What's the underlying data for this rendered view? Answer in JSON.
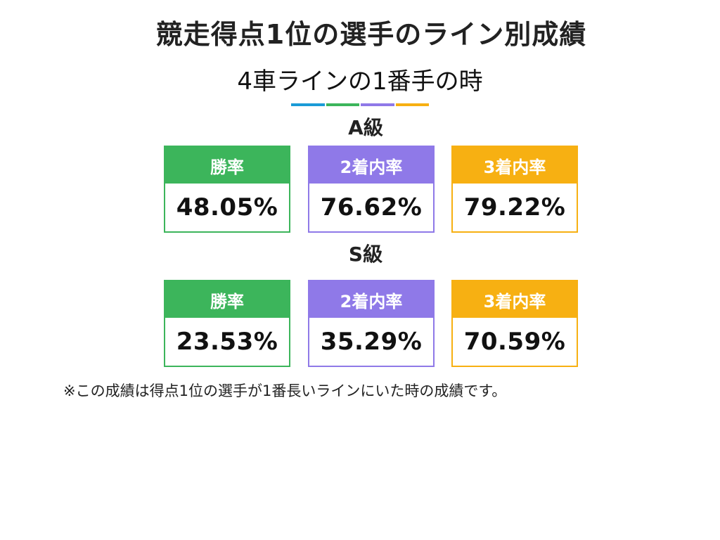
{
  "title": "競走得点1位の選手のライン別成績",
  "subtitle": "4車ラインの1番手の時",
  "colors": {
    "blue": "#1a9bd7",
    "green": "#3cb55b",
    "purple": "#8f79e8",
    "orange": "#f7b012"
  },
  "sections": [
    {
      "label": "A級",
      "cards": [
        {
          "label": "勝率",
          "value": "48.05%"
        },
        {
          "label": "2着内率",
          "value": "76.62%"
        },
        {
          "label": "3着内率",
          "value": "79.22%"
        }
      ]
    },
    {
      "label": "S級",
      "cards": [
        {
          "label": "勝率",
          "value": "23.53%"
        },
        {
          "label": "2着内率",
          "value": "35.29%"
        },
        {
          "label": "3着内率",
          "value": "70.59%"
        }
      ]
    }
  ],
  "note": "※この成績は得点1位の選手が1番長いラインにいた時の成績です。"
}
